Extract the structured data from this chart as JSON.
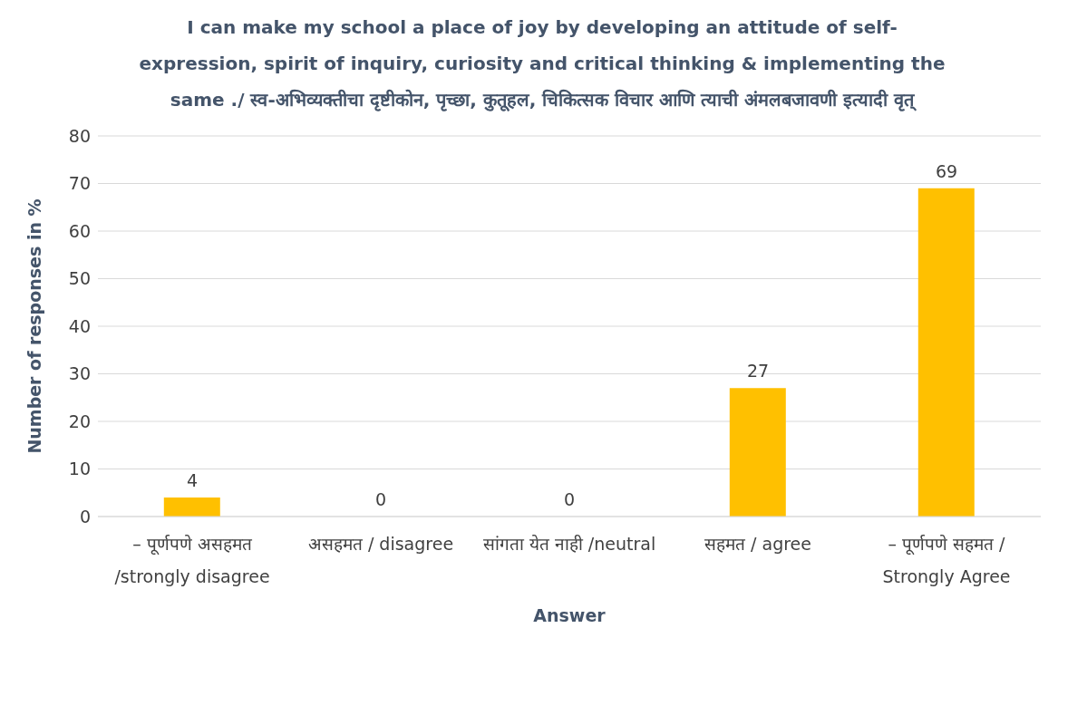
{
  "chart_data": {
    "type": "bar",
    "title": "I can make my school a place of joy by developing an attitude of self-expression, spirit of inquiry, curiosity and critical thinking & implementing the same ./ स्व-अभिव्यक्तीचा दृष्टीकोन, पृच्छा, कुतूहल, चिकित्सक विचार आणि त्याची अंमलबजावणी इत्यादी वृत्",
    "xlabel": "Answer",
    "ylabel": "Number of responses in %",
    "categories": [
      "– पूर्णपणे असहमत /strongly disagree",
      "असहमत / disagree",
      "सांगता येत नाही /neutral",
      "सहमत / agree",
      "– पूर्णपणे सहमत / Strongly Agree"
    ],
    "values": [
      4,
      0,
      0,
      27,
      69
    ],
    "color": "#ffc000",
    "ylim": [
      0,
      80
    ],
    "yticks": [
      0,
      10,
      20,
      30,
      40,
      50,
      60,
      70,
      80
    ],
    "grid": "y",
    "data_labels": true,
    "legend": false
  }
}
